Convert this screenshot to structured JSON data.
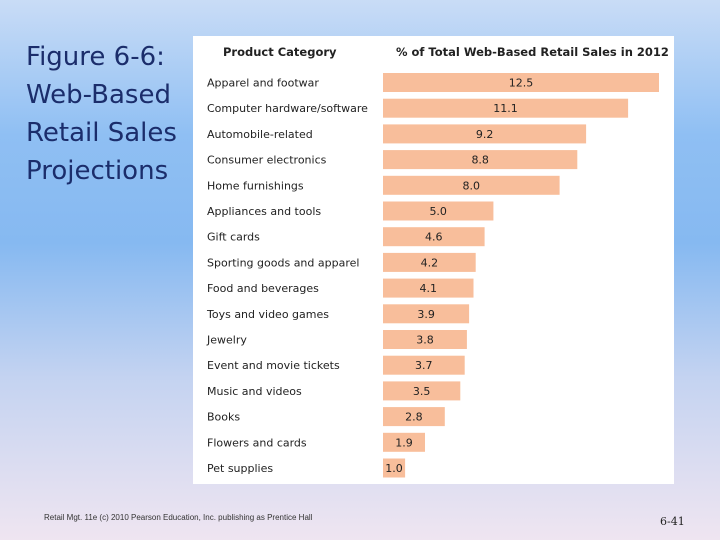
{
  "slide": {
    "title_lines": [
      "Figure 6-6:",
      "Web-Based",
      "Retail Sales",
      "Projections"
    ],
    "footer": "Retail Mgt. 11e (c) 2010 Pearson Education, Inc. publishing as Prentice Hall",
    "page_number": "6-41"
  },
  "chart_data": {
    "type": "bar",
    "orientation": "horizontal",
    "category_header": "Product Category",
    "value_header": "% of Total Web-Based Retail Sales in 2012",
    "categories": [
      "Apparel and footwar",
      "Computer hardware/software",
      "Automobile-related",
      "Consumer electronics",
      "Home furnishings",
      "Appliances and tools",
      "Gift cards",
      "Sporting goods and apparel",
      "Food and beverages",
      "Toys and video games",
      "Jewelry",
      "Event and movie tickets",
      "Music and videos",
      "Books",
      "Flowers and cards",
      "Pet supplies"
    ],
    "values": [
      12.5,
      11.1,
      9.2,
      8.8,
      8.0,
      5.0,
      4.6,
      4.2,
      4.1,
      3.9,
      3.8,
      3.7,
      3.5,
      2.8,
      1.9,
      1.0
    ],
    "value_labels": [
      "12.5",
      "11.1",
      "9.2",
      "8.8",
      "8.0",
      "5.0",
      "4.6",
      "4.2",
      "4.1",
      "3.9",
      "3.8",
      "3.7",
      "3.5",
      "2.8",
      "1.9",
      "1.0"
    ],
    "bar_color": "#f8be9b",
    "grid": false,
    "legend": "none"
  }
}
